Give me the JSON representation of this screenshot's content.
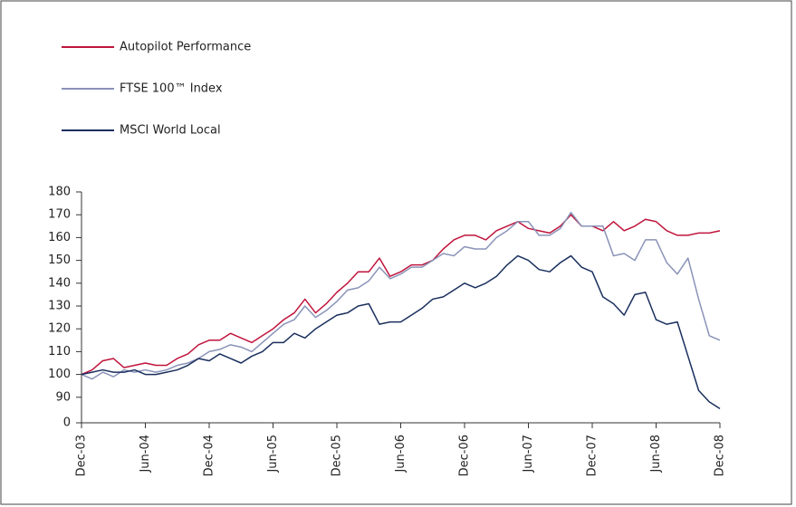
{
  "chart_data": {
    "type": "line",
    "categories": [
      "Dec-03",
      null,
      null,
      null,
      null,
      null,
      "Jun-04",
      null,
      null,
      null,
      null,
      null,
      "Dec-04",
      null,
      null,
      null,
      null,
      null,
      "Jun-05",
      null,
      null,
      null,
      null,
      null,
      "Dec-05",
      null,
      null,
      null,
      null,
      null,
      "Jun-06",
      null,
      null,
      null,
      null,
      null,
      "Dec-06",
      null,
      null,
      null,
      null,
      null,
      "Jun-07",
      null,
      null,
      null,
      null,
      null,
      "Dec-07",
      null,
      null,
      null,
      null,
      null,
      "Jun-08",
      null,
      null,
      null,
      null,
      null,
      "Dec-08"
    ],
    "series": [
      {
        "name": "Autopilot Performance",
        "color": "#c0143c",
        "values": [
          100,
          102,
          106,
          107,
          103,
          104,
          105,
          104,
          104,
          107,
          109,
          113,
          115,
          115,
          118,
          116,
          114,
          117,
          120,
          124,
          127,
          133,
          127,
          131,
          136,
          140,
          145,
          145,
          151,
          143,
          145,
          148,
          148,
          150,
          155,
          159,
          161,
          161,
          159,
          163,
          165,
          167,
          164,
          163,
          162,
          165,
          170,
          165,
          165,
          163,
          167,
          163,
          165,
          168,
          167,
          163,
          161,
          161,
          162,
          162,
          163
        ]
      },
      {
        "name": "FTSE 100™ Index",
        "color": "#8a93b8",
        "values": [
          100,
          98,
          101,
          99,
          102,
          101,
          102,
          101,
          102,
          104,
          105,
          107,
          110,
          111,
          113,
          112,
          110,
          114,
          118,
          122,
          124,
          130,
          125,
          128,
          132,
          137,
          138,
          141,
          147,
          142,
          144,
          147,
          147,
          150,
          153,
          152,
          156,
          155,
          155,
          160,
          163,
          167,
          167,
          161,
          161,
          164,
          171,
          165,
          165,
          165,
          152,
          153,
          150,
          159,
          159,
          149,
          144,
          151,
          133,
          117,
          115
        ]
      },
      {
        "name": "MSCI World Local",
        "color": "#1a2f5e",
        "values": [
          100,
          101,
          102,
          101,
          101,
          102,
          100,
          100,
          101,
          102,
          104,
          107,
          106,
          109,
          107,
          105,
          108,
          110,
          114,
          114,
          118,
          116,
          120,
          123,
          126,
          127,
          130,
          131,
          122,
          123,
          123,
          126,
          129,
          133,
          134,
          137,
          140,
          138,
          140,
          143,
          148,
          152,
          150,
          146,
          145,
          149,
          152,
          147,
          145,
          134,
          131,
          126,
          135,
          136,
          124,
          122,
          123,
          108,
          93,
          88,
          85
        ]
      }
    ],
    "ylim": [
      0,
      180
    ],
    "y_axis_break": [
      0,
      80
    ],
    "yticks": [
      0,
      90,
      100,
      110,
      120,
      130,
      140,
      150,
      160,
      170,
      180
    ],
    "legend": "top-left"
  }
}
